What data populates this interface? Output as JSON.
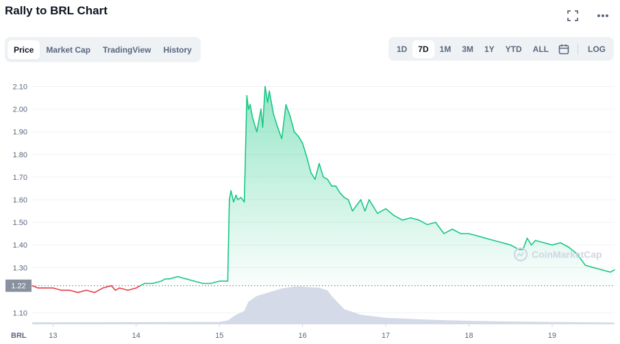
{
  "header": {
    "title": "Rally to BRL Chart"
  },
  "icons": {
    "fullscreen": "fullscreen-icon",
    "more": "more-icon",
    "calendar": "calendar-icon"
  },
  "tabs": [
    {
      "label": "Price",
      "active": true
    },
    {
      "label": "Market Cap",
      "active": false
    },
    {
      "label": "TradingView",
      "active": false
    },
    {
      "label": "History",
      "active": false
    }
  ],
  "ranges": [
    {
      "label": "1D",
      "active": false
    },
    {
      "label": "7D",
      "active": true
    },
    {
      "label": "1M",
      "active": false
    },
    {
      "label": "3M",
      "active": false
    },
    {
      "label": "1Y",
      "active": false
    },
    {
      "label": "YTD",
      "active": false
    },
    {
      "label": "ALL",
      "active": false
    }
  ],
  "log_label": "LOG",
  "watermark": "CoinMarketCap",
  "colors": {
    "up": "#16c784",
    "down": "#ea3943",
    "volume": "#cfd6e4",
    "text": "#58667e",
    "accent": "#0d1421"
  },
  "chart_data": {
    "type": "line",
    "currency_label": "BRL",
    "baseline": 1.22,
    "baseline_label": "1.22",
    "y_ticks": [
      "2.10",
      "2.00",
      "1.90",
      "1.80",
      "1.70",
      "1.60",
      "1.50",
      "1.40",
      "1.30",
      "1.10"
    ],
    "ylim": [
      1.05,
      2.15
    ],
    "xlim": [
      12.75,
      19.75
    ],
    "x_ticks": [
      {
        "x": 13,
        "label": "13"
      },
      {
        "x": 14,
        "label": "14"
      },
      {
        "x": 15,
        "label": "15"
      },
      {
        "x": 16,
        "label": "16"
      },
      {
        "x": 17,
        "label": "17"
      },
      {
        "x": 18,
        "label": "18"
      },
      {
        "x": 19,
        "label": "19"
      }
    ],
    "series": [
      {
        "x": [
          12.75,
          12.82,
          12.9,
          13.0,
          13.1,
          13.2,
          13.3,
          13.4,
          13.5,
          13.55,
          13.6,
          13.7,
          13.75,
          13.8,
          13.9,
          14.0,
          14.05,
          14.1,
          14.2,
          14.3,
          14.35,
          14.4,
          14.5,
          14.6,
          14.7,
          14.8,
          14.9,
          15.0,
          15.1,
          15.12,
          15.14,
          15.17,
          15.2,
          15.22,
          15.26,
          15.3,
          15.33,
          15.35,
          15.37,
          15.4,
          15.45,
          15.5,
          15.52,
          15.55,
          15.58,
          15.6,
          15.65,
          15.7,
          15.75,
          15.8,
          15.85,
          15.9,
          15.95,
          16.0,
          16.05,
          16.1,
          16.15,
          16.2,
          16.25,
          16.3,
          16.35,
          16.4,
          16.45,
          16.5,
          16.55,
          16.6,
          16.7,
          16.75,
          16.8,
          16.85,
          16.9,
          17.0,
          17.1,
          17.2,
          17.3,
          17.4,
          17.5,
          17.6,
          17.7,
          17.8,
          17.9,
          18.0,
          18.1,
          18.2,
          18.3,
          18.4,
          18.5,
          18.6,
          18.65,
          18.7,
          18.75,
          18.8,
          18.9,
          19.0,
          19.1,
          19.2,
          19.3,
          19.4,
          19.5,
          19.6,
          19.7,
          19.75
        ],
        "y": [
          1.22,
          1.21,
          1.21,
          1.21,
          1.2,
          1.2,
          1.19,
          1.2,
          1.19,
          1.2,
          1.21,
          1.22,
          1.2,
          1.21,
          1.2,
          1.21,
          1.22,
          1.23,
          1.23,
          1.24,
          1.25,
          1.25,
          1.26,
          1.25,
          1.24,
          1.23,
          1.23,
          1.24,
          1.24,
          1.6,
          1.64,
          1.59,
          1.62,
          1.6,
          1.61,
          1.59,
          2.06,
          2.0,
          2.02,
          1.96,
          1.9,
          2.0,
          1.92,
          2.1,
          2.03,
          2.08,
          1.98,
          1.92,
          1.87,
          2.02,
          1.97,
          1.9,
          1.88,
          1.85,
          1.79,
          1.72,
          1.69,
          1.76,
          1.7,
          1.69,
          1.66,
          1.66,
          1.63,
          1.61,
          1.6,
          1.55,
          1.6,
          1.55,
          1.6,
          1.57,
          1.54,
          1.56,
          1.53,
          1.51,
          1.52,
          1.51,
          1.49,
          1.5,
          1.45,
          1.47,
          1.45,
          1.45,
          1.44,
          1.43,
          1.42,
          1.41,
          1.4,
          1.38,
          1.38,
          1.43,
          1.4,
          1.42,
          1.41,
          1.4,
          1.41,
          1.39,
          1.36,
          1.31,
          1.3,
          1.29,
          1.28,
          1.29
        ]
      }
    ],
    "volume": {
      "x": [
        12.75,
        15.0,
        15.1,
        15.2,
        15.3,
        15.35,
        15.45,
        15.6,
        15.75,
        15.9,
        16.0,
        16.1,
        16.2,
        16.3,
        16.35,
        16.5,
        16.7,
        17.0,
        17.5,
        18.0,
        18.5,
        19.0,
        19.5,
        19.75
      ],
      "y": [
        0.05,
        0.06,
        0.1,
        0.25,
        0.35,
        0.6,
        0.75,
        0.85,
        0.95,
        1.0,
        1.0,
        0.98,
        0.97,
        0.9,
        0.75,
        0.4,
        0.25,
        0.17,
        0.12,
        0.09,
        0.07,
        0.06,
        0.05,
        0.04
      ]
    }
  }
}
